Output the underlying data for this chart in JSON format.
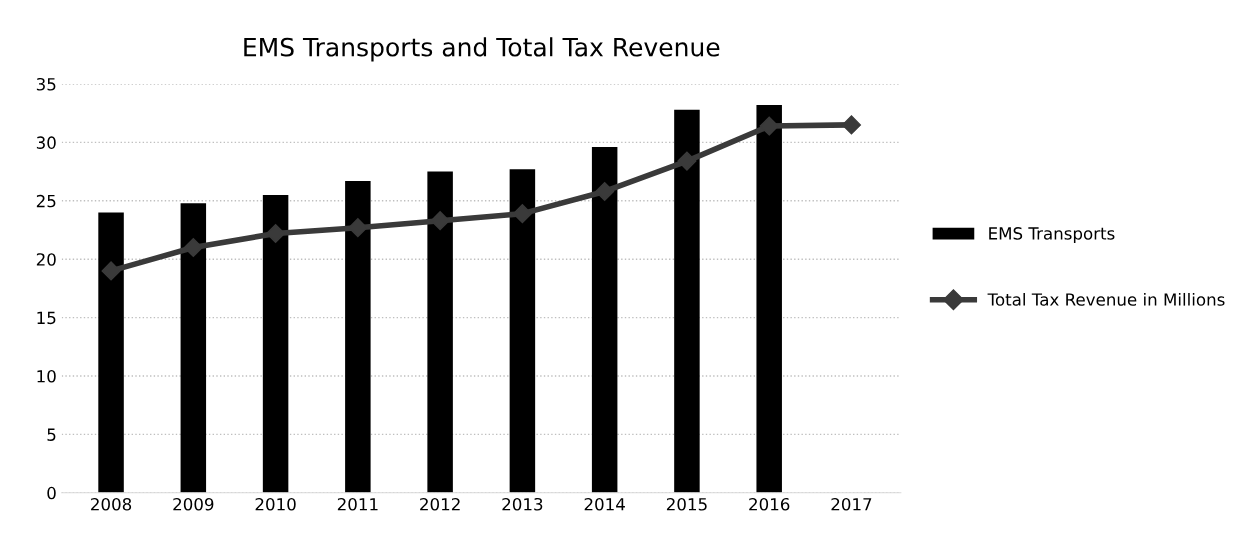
{
  "chart_data": {
    "type": "bar",
    "title": "EMS Transports and Total Tax Revenue",
    "categories": [
      "2008",
      "2009",
      "2010",
      "2011",
      "2012",
      "2013",
      "2014",
      "2015",
      "2016",
      "2017"
    ],
    "series": [
      {
        "name": "EMS Transports",
        "color": "#000000",
        "values": [
          24.0,
          24.8,
          25.5,
          26.7,
          27.5,
          27.7,
          29.6,
          32.8,
          33.2,
          null
        ]
      },
      {
        "name": "Total Tax Revenue in Millions",
        "type": "line",
        "color": "#3a3a3a",
        "marker": "diamond",
        "values": [
          19.0,
          21.0,
          22.2,
          22.7,
          23.3,
          23.9,
          25.8,
          28.4,
          31.4,
          31.5
        ]
      }
    ],
    "ylim": [
      0,
      35
    ],
    "yticks": [
      0,
      5,
      10,
      15,
      20,
      25,
      30,
      35
    ],
    "grid": "y",
    "legend": "right"
  }
}
